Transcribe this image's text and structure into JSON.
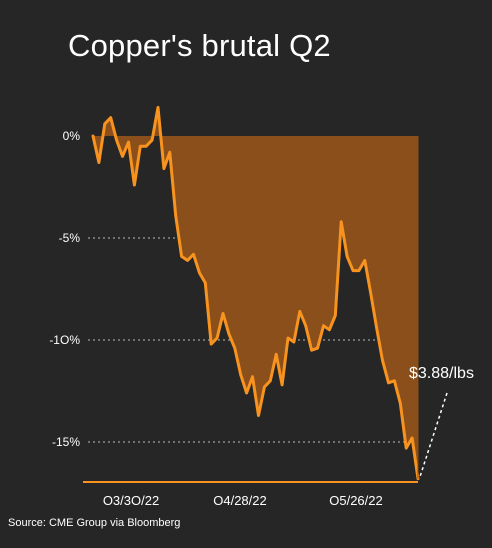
{
  "title": "Copper's brutal Q2",
  "source": "Source: CME Group via Bloomberg",
  "callout": "$3.88/lbs",
  "colors": {
    "background": "#262626",
    "line": "#f7931e",
    "fill": "#8b4f1b",
    "grid": "#bbbbbb"
  },
  "chart_data": {
    "type": "area",
    "title": "Copper's brutal Q2",
    "xlabel": "",
    "ylabel": "",
    "ylim": [
      -17,
      1.5
    ],
    "x_tick_labels": [
      "O3/3O/22",
      "O4/28/22",
      "O5/26/22"
    ],
    "y_ticks": [
      0,
      -5,
      -10,
      -15
    ],
    "y_tick_labels": [
      "0%",
      "-5%",
      "-1O%",
      "-15%"
    ],
    "grid": "horizontal dotted at -5, -10, -15",
    "annotations": [
      "$3.88/lbs"
    ],
    "series": [
      {
        "values": [
          0,
          -1.3,
          0.6,
          0.9,
          -0.2,
          -1.0,
          -0.3,
          -2.4,
          -0.5,
          -0.5,
          -0.2,
          1.4,
          -1.6,
          -0.8,
          -3.9,
          -5.9,
          -6.1,
          -5.8,
          -6.7,
          -7.2,
          -10.2,
          -9.9,
          -8.7,
          -9.7,
          -10.4,
          -11.7,
          -12.6,
          -11.8,
          -13.7,
          -12.3,
          -12.0,
          -10.7,
          -12.2,
          -9.9,
          -10.1,
          -8.6,
          -9.3,
          -10.5,
          -10.4,
          -9.3,
          -9.5,
          -8.8,
          -4.2,
          -5.9,
          -6.6,
          -6.6,
          -6.1,
          -7.7,
          -9.4,
          -11.0,
          -12.1,
          -12.0,
          -13.1,
          -15.3,
          -14.8,
          -16.8
        ]
      }
    ]
  }
}
